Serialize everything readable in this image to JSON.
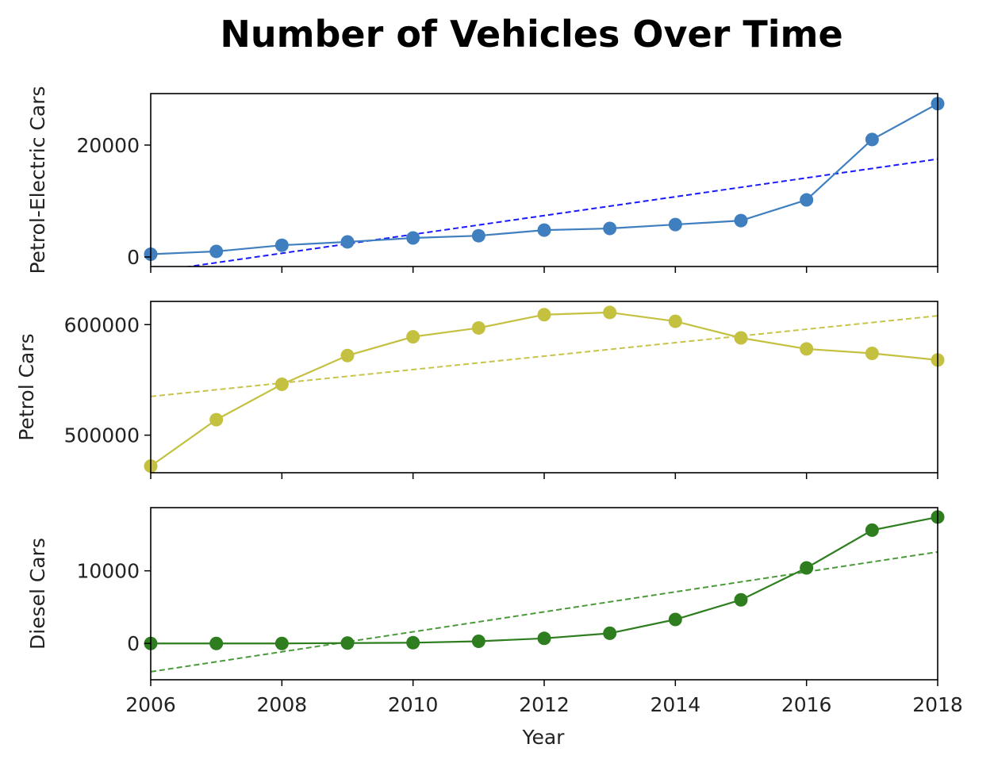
{
  "chart_data": {
    "type": "line",
    "title": "Number of Vehicles Over Time",
    "xlabel": "Year",
    "x_ticks": [
      "2006",
      "2008",
      "2010",
      "2012",
      "2014",
      "2016",
      "2018"
    ],
    "xlim": [
      2006,
      2018
    ],
    "x": [
      2006,
      2007,
      2008,
      2009,
      2010,
      2011,
      2012,
      2013,
      2014,
      2015,
      2016,
      2017,
      2018
    ],
    "grid": false,
    "panels": [
      {
        "ylabel": "Petrol-Electric Cars",
        "color": "#3f7fbf",
        "trend_color": "#1a1aff",
        "ylim": [
          -1700,
          29200
        ],
        "y_ticks": [
          {
            "value": 0,
            "label": "0"
          },
          {
            "value": 20000,
            "label": "20000"
          }
        ],
        "values": [
          500,
          1000,
          2100,
          2700,
          3400,
          3800,
          4800,
          5100,
          5800,
          6500,
          10200,
          21000,
          27400
        ],
        "trend": {
          "start": -2700,
          "end": 17500
        }
      },
      {
        "ylabel": "Petrol Cars",
        "color": "#c4c040",
        "trend_color": "#c8c44a",
        "ylim": [
          466000,
          621000
        ],
        "y_ticks": [
          {
            "value": 500000,
            "label": "500000"
          },
          {
            "value": 600000,
            "label": "600000"
          }
        ],
        "values": [
          472000,
          514000,
          546000,
          572000,
          589000,
          597000,
          609000,
          611000,
          603000,
          588000,
          578000,
          574000,
          568000
        ],
        "trend": {
          "start": 535000,
          "end": 608000
        }
      },
      {
        "ylabel": "Diesel Cars",
        "color": "#2e7d1f",
        "trend_color": "#4a9a3a",
        "ylim": [
          -5000,
          18700
        ],
        "y_ticks": [
          {
            "value": 0,
            "label": "0"
          },
          {
            "value": 10000,
            "label": "10000"
          }
        ],
        "values": [
          0,
          0,
          0,
          50,
          100,
          300,
          700,
          1400,
          3300,
          6000,
          10400,
          15600,
          17400
        ],
        "trend": {
          "start": -3900,
          "end": 12600
        }
      }
    ]
  }
}
